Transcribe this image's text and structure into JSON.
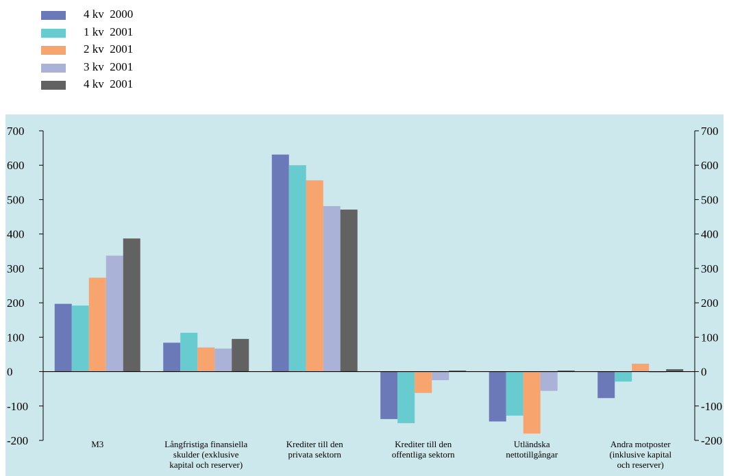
{
  "chart_data": {
    "type": "bar",
    "categories": [
      [
        "M3"
      ],
      [
        "Långfristiga finansiella",
        "skulder (exklusive",
        "kapital och reserver)"
      ],
      [
        "Krediter till den",
        "privata sektorn"
      ],
      [
        "Krediter till den",
        "offentliga sektorn"
      ],
      [
        "Utländska",
        "nettotillgångar"
      ],
      [
        "Andra motposter",
        "(inklusive kapital",
        "och reserver)"
      ]
    ],
    "series": [
      {
        "name": "4 kv  2000",
        "color": "#6b79b8",
        "values": [
          197,
          84,
          631,
          -138,
          -145,
          -77
        ]
      },
      {
        "name": "1 kv  2001",
        "color": "#68cbcf",
        "values": [
          192,
          113,
          600,
          -150,
          -128,
          -29
        ]
      },
      {
        "name": "2 kv  2001",
        "color": "#f7a46e",
        "values": [
          273,
          70,
          556,
          -62,
          -180,
          23
        ]
      },
      {
        "name": "3 kv  2001",
        "color": "#aab2d8",
        "values": [
          337,
          67,
          481,
          -25,
          -56,
          -3
        ]
      },
      {
        "name": "4 kv  2001",
        "color": "#626262",
        "values": [
          387,
          95,
          471,
          3,
          3,
          7
        ]
      }
    ],
    "ylim": [
      -200,
      700
    ],
    "yticks": [
      -200,
      -100,
      0,
      100,
      200,
      300,
      400,
      500,
      600,
      700
    ],
    "legend_position": "top-left",
    "background_color": "#cde8ec",
    "grid": false
  }
}
